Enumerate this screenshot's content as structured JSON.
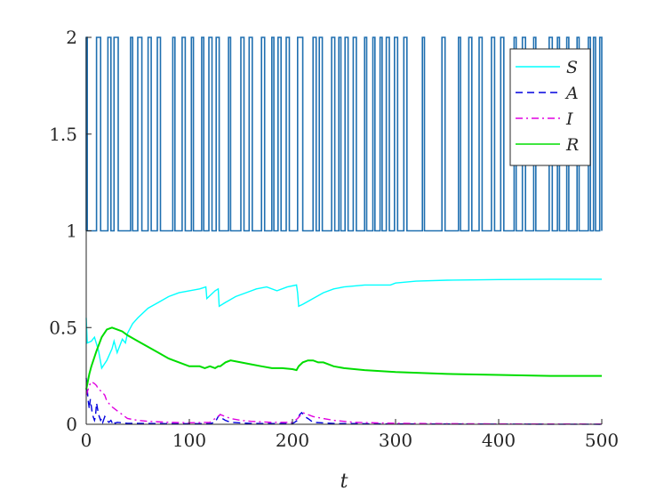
{
  "chart_data": {
    "type": "line",
    "title": "",
    "xlabel": "t",
    "ylabel": "",
    "xlim": [
      0,
      500
    ],
    "ylim": [
      0,
      2
    ],
    "grid": false,
    "legend_position": "top-right",
    "x_ticks": [
      "0",
      "100",
      "200",
      "300",
      "400",
      "500"
    ],
    "y_ticks": [
      "0",
      "0.5",
      "1",
      "1.5",
      "2"
    ],
    "switching_signal": {
      "name": "",
      "color": "#1f6fb0",
      "low": 1,
      "high": 2,
      "intervals_at_high": [
        [
          0,
          1
        ],
        [
          10,
          14
        ],
        [
          21,
          24
        ],
        [
          27,
          31
        ],
        [
          43,
          45
        ],
        [
          50,
          54
        ],
        [
          60,
          63
        ],
        [
          69,
          72
        ],
        [
          84,
          86
        ],
        [
          93,
          96
        ],
        [
          102,
          104
        ],
        [
          112,
          114
        ],
        [
          119,
          122
        ],
        [
          126,
          129
        ],
        [
          138,
          140
        ],
        [
          150,
          153
        ],
        [
          158,
          161
        ],
        [
          170,
          173
        ],
        [
          180,
          182
        ],
        [
          186,
          189
        ],
        [
          194,
          197
        ],
        [
          205,
          210
        ],
        [
          220,
          223
        ],
        [
          226,
          229
        ],
        [
          238,
          241
        ],
        [
          245,
          247
        ],
        [
          251,
          254
        ],
        [
          259,
          262
        ],
        [
          270,
          272
        ],
        [
          278,
          280
        ],
        [
          285,
          287
        ],
        [
          291,
          294
        ],
        [
          299,
          302
        ],
        [
          308,
          311
        ],
        [
          326,
          328
        ],
        [
          345,
          348
        ],
        [
          361,
          363
        ],
        [
          371,
          374
        ],
        [
          381,
          384
        ],
        [
          393,
          396
        ],
        [
          402,
          405
        ],
        [
          415,
          417
        ],
        [
          423,
          426
        ],
        [
          434,
          436
        ],
        [
          449,
          452
        ],
        [
          457,
          459
        ],
        [
          466,
          468
        ],
        [
          476,
          478
        ],
        [
          487,
          489
        ],
        [
          492,
          494
        ],
        [
          498,
          500
        ]
      ]
    },
    "series": [
      {
        "name": "S",
        "color": "#00ffff",
        "dash": "solid",
        "x": [
          0,
          1,
          5,
          8,
          12,
          15,
          20,
          25,
          27,
          30,
          35,
          38,
          40,
          45,
          50,
          60,
          70,
          80,
          90,
          100,
          110,
          116,
          117,
          125,
          128,
          129,
          135,
          145,
          155,
          165,
          175,
          185,
          195,
          204,
          205,
          206,
          210,
          220,
          230,
          240,
          250,
          270,
          290,
          295,
          300,
          320,
          350,
          400,
          450,
          500
        ],
        "values": [
          0.55,
          0.42,
          0.43,
          0.45,
          0.38,
          0.29,
          0.33,
          0.39,
          0.43,
          0.37,
          0.44,
          0.42,
          0.47,
          0.52,
          0.55,
          0.6,
          0.63,
          0.66,
          0.68,
          0.69,
          0.7,
          0.71,
          0.65,
          0.69,
          0.7,
          0.61,
          0.63,
          0.66,
          0.68,
          0.7,
          0.71,
          0.69,
          0.71,
          0.72,
          0.68,
          0.61,
          0.62,
          0.65,
          0.68,
          0.7,
          0.71,
          0.72,
          0.72,
          0.72,
          0.73,
          0.74,
          0.745,
          0.748,
          0.75,
          0.75
        ]
      },
      {
        "name": "A",
        "color": "#0000dd",
        "dash": "dashed",
        "x": [
          0,
          2,
          3,
          4,
          6,
          8,
          9,
          10,
          12,
          14,
          15,
          16,
          18,
          20,
          22,
          24,
          25,
          26,
          28,
          30,
          40,
          60,
          80,
          100,
          120,
          125,
          128,
          130,
          132,
          135,
          140,
          160,
          200,
          205,
          207,
          209,
          212,
          215,
          220,
          240,
          300,
          400,
          500
        ],
        "values": [
          0.24,
          0.12,
          0.08,
          0.13,
          0.05,
          0.02,
          0.04,
          0.11,
          0.05,
          0.02,
          0.03,
          0.01,
          0.04,
          0.02,
          0.01,
          0.02,
          0.01,
          0.02,
          0.005,
          0.01,
          0.005,
          0.004,
          0.003,
          0.003,
          0.003,
          0.01,
          0.04,
          0.05,
          0.03,
          0.02,
          0.01,
          0.004,
          0.003,
          0.02,
          0.05,
          0.06,
          0.04,
          0.03,
          0.01,
          0.004,
          0.002,
          0.001,
          0.0
        ]
      },
      {
        "name": "I",
        "color": "#e000e0",
        "dash": "dashdot",
        "x": [
          0,
          3,
          5,
          8,
          10,
          12,
          15,
          18,
          20,
          25,
          30,
          35,
          40,
          50,
          60,
          80,
          100,
          120,
          125,
          130,
          135,
          140,
          150,
          160,
          180,
          200,
          205,
          210,
          215,
          220,
          230,
          240,
          260,
          300,
          350,
          400,
          500
        ],
        "values": [
          0.15,
          0.2,
          0.22,
          0.21,
          0.2,
          0.18,
          0.17,
          0.15,
          0.12,
          0.09,
          0.07,
          0.05,
          0.03,
          0.02,
          0.015,
          0.01,
          0.008,
          0.01,
          0.03,
          0.05,
          0.04,
          0.03,
          0.02,
          0.015,
          0.01,
          0.01,
          0.03,
          0.06,
          0.05,
          0.04,
          0.03,
          0.02,
          0.01,
          0.005,
          0.003,
          0.002,
          0.001
        ]
      },
      {
        "name": "R",
        "color": "#00dd00",
        "dash": "solid",
        "x": [
          0,
          3,
          5,
          10,
          15,
          20,
          25,
          30,
          35,
          40,
          50,
          60,
          70,
          80,
          90,
          100,
          110,
          115,
          120,
          125,
          128,
          130,
          135,
          140,
          150,
          160,
          170,
          180,
          190,
          200,
          204,
          206,
          210,
          215,
          220,
          225,
          230,
          240,
          250,
          270,
          300,
          350,
          400,
          450,
          500
        ],
        "values": [
          0.18,
          0.26,
          0.3,
          0.38,
          0.45,
          0.49,
          0.5,
          0.49,
          0.48,
          0.46,
          0.43,
          0.4,
          0.37,
          0.34,
          0.32,
          0.3,
          0.3,
          0.29,
          0.3,
          0.29,
          0.3,
          0.3,
          0.32,
          0.33,
          0.32,
          0.31,
          0.3,
          0.29,
          0.29,
          0.285,
          0.28,
          0.3,
          0.32,
          0.33,
          0.33,
          0.32,
          0.32,
          0.3,
          0.29,
          0.28,
          0.27,
          0.26,
          0.255,
          0.25,
          0.25
        ]
      }
    ]
  }
}
